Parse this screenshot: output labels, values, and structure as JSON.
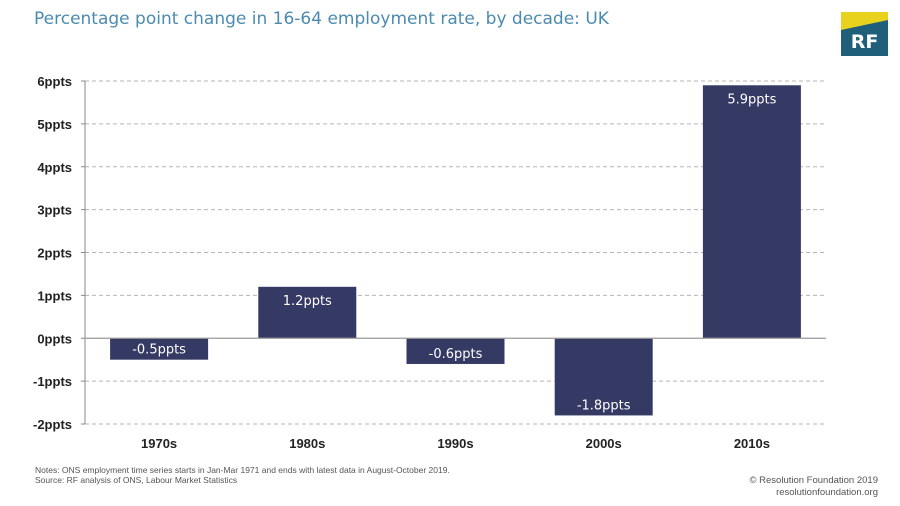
{
  "title": "Percentage point change in 16-64 employment rate, by decade: UK",
  "logo": {
    "text": "RF",
    "colors": {
      "primary": "#1f5f7a",
      "accent": "#e8d21d"
    }
  },
  "notes": [
    "Notes: ONS employment time series starts in Jan-Mar 1971 and ends with latest data in August-October 2019.",
    "Source: RF analysis of ONS, Labour Market Statistics"
  ],
  "credit": [
    "© Resolution Foundation 2019",
    "resolutionfoundation.org"
  ],
  "chart_data": {
    "type": "bar",
    "title": "Percentage point change in 16-64 employment rate, by decade: UK",
    "xlabel": "",
    "ylabel": "",
    "categories": [
      "1970s",
      "1980s",
      "1990s",
      "2000s",
      "2010s"
    ],
    "values": [
      -0.5,
      1.2,
      -0.6,
      -1.8,
      5.9
    ],
    "data_labels": [
      "-0.5ppts",
      "1.2ppts",
      "-0.6ppts",
      "-1.8ppts",
      "5.9ppts"
    ],
    "ylim": [
      -2,
      6
    ],
    "yticks": [
      6,
      5,
      4,
      3,
      2,
      1,
      0,
      -1,
      -2
    ],
    "ytick_labels": [
      "6ppts",
      "5ppts",
      "4ppts",
      "3ppts",
      "2ppts",
      "1ppts",
      "0ppts",
      "-1ppts",
      "-2ppts"
    ],
    "grid": true,
    "bar_color": "#353a64",
    "label_color": "#ffffff"
  }
}
